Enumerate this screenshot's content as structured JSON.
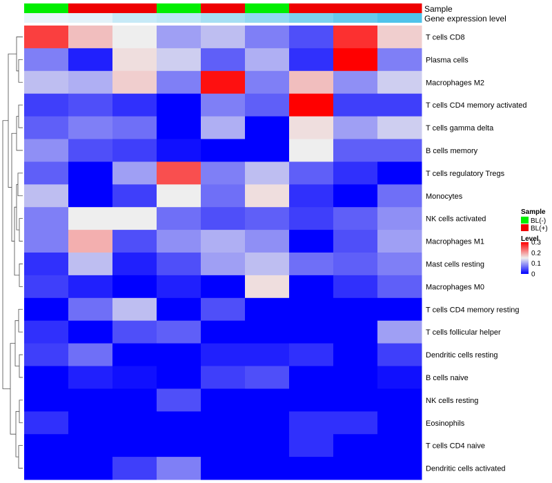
{
  "chart_data": {
    "type": "heatmap",
    "title": "",
    "rows": [
      "T cells CD8",
      "Plasma cells",
      "Macrophages M2",
      "T cells CD4 memory activated",
      "T cells gamma delta",
      "B cells memory",
      "T cells regulatory  Tregs",
      "Monocytes",
      "NK cells activated",
      "Macrophages M1",
      "Mast cells resting",
      "Macrophages M0",
      "T cells CD4 memory resting",
      "T cells follicular helper",
      "Dendritic cells resting",
      "B cells naive",
      "NK cells resting",
      "Eosinophils",
      "T cells CD4 naive",
      "Dendritic cells activated"
    ],
    "columns": [
      {
        "sample": "BL(-)",
        "gene_expression_level": 0.02
      },
      {
        "sample": "BL(+)",
        "gene_expression_level": 0.03
      },
      {
        "sample": "BL(+)",
        "gene_expression_level": 0.08
      },
      {
        "sample": "BL(-)",
        "gene_expression_level": 0.1
      },
      {
        "sample": "BL(+)",
        "gene_expression_level": 0.14
      },
      {
        "sample": "BL(-)",
        "gene_expression_level": 0.18
      },
      {
        "sample": "BL(+)",
        "gene_expression_level": 0.22
      },
      {
        "sample": "BL(+)",
        "gene_expression_level": 0.26
      },
      {
        "sample": "BL(+)",
        "gene_expression_level": 0.3
      }
    ],
    "values": [
      [
        0.26,
        0.18,
        0.15,
        0.1,
        0.12,
        0.08,
        0.05,
        0.27,
        0.17
      ],
      [
        0.08,
        0.02,
        0.16,
        0.13,
        0.06,
        0.11,
        0.03,
        0.31,
        0.08
      ],
      [
        0.12,
        0.11,
        0.17,
        0.08,
        0.29,
        0.08,
        0.18,
        0.09,
        0.13
      ],
      [
        0.04,
        0.05,
        0.03,
        0.0,
        0.08,
        0.06,
        0.31,
        0.04,
        0.04
      ],
      [
        0.06,
        0.08,
        0.07,
        0.0,
        0.11,
        0.0,
        0.16,
        0.1,
        0.13
      ],
      [
        0.09,
        0.05,
        0.04,
        0.01,
        0.0,
        0.0,
        0.15,
        0.06,
        0.06
      ],
      [
        0.06,
        0.0,
        0.1,
        0.25,
        0.08,
        0.12,
        0.06,
        0.03,
        0.0
      ],
      [
        0.12,
        0.0,
        0.04,
        0.15,
        0.07,
        0.16,
        0.03,
        0.0,
        0.07
      ],
      [
        0.08,
        0.15,
        0.15,
        0.07,
        0.05,
        0.06,
        0.04,
        0.06,
        0.09
      ],
      [
        0.08,
        0.19,
        0.05,
        0.09,
        0.11,
        0.09,
        0.0,
        0.05,
        0.1
      ],
      [
        0.03,
        0.12,
        0.02,
        0.05,
        0.1,
        0.12,
        0.07,
        0.06,
        0.08
      ],
      [
        0.04,
        0.02,
        0.0,
        0.02,
        0.0,
        0.16,
        0.0,
        0.03,
        0.06
      ],
      [
        0.0,
        0.07,
        0.12,
        0.0,
        0.05,
        0.0,
        0.0,
        0.0,
        0.0
      ],
      [
        0.03,
        0.0,
        0.05,
        0.06,
        0.0,
        0.0,
        0.0,
        0.0,
        0.1
      ],
      [
        0.04,
        0.07,
        0.0,
        0.0,
        0.02,
        0.02,
        0.03,
        0.0,
        0.04
      ],
      [
        0.0,
        0.02,
        0.01,
        0.0,
        0.04,
        0.05,
        0.0,
        0.0,
        0.01
      ],
      [
        0.0,
        0.0,
        0.0,
        0.05,
        0.0,
        0.0,
        0.0,
        0.0,
        0.0
      ],
      [
        0.03,
        0.0,
        0.0,
        0.0,
        0.0,
        0.0,
        0.03,
        0.03,
        0.0
      ],
      [
        0.0,
        0.0,
        0.0,
        0.0,
        0.0,
        0.0,
        0.03,
        0.0,
        0.0
      ],
      [
        0.0,
        0.0,
        0.04,
        0.08,
        0.0,
        0.0,
        0.0,
        0.0,
        0.0
      ]
    ],
    "color_scale": {
      "range": [
        0,
        0.3
      ],
      "stops": [
        {
          "value": 0.0,
          "color": "#0000ff"
        },
        {
          "value": 0.15,
          "color": "#eeeeee"
        },
        {
          "value": 0.3,
          "color": "#ff0000"
        }
      ]
    },
    "annotation_tracks": [
      "Sample",
      "Gene expression level"
    ],
    "sample_colors": {
      "BL(-)": "#00ee00",
      "BL(+)": "#ee0000"
    },
    "gene_level_colors": {
      "low": "#e8f4fa",
      "high": "#4fc3ea"
    },
    "legend": {
      "sample_title": "Sample",
      "sample_entries": [
        "BL(-)",
        "BL(+)"
      ],
      "level_title": "Level",
      "level_ticks": [
        "0.3",
        "0.2",
        "0.1",
        "0"
      ],
      "level_tick_values": [
        0.3,
        0.2,
        0.1,
        0
      ],
      "position": "right"
    },
    "row_dendrogram": true
  }
}
